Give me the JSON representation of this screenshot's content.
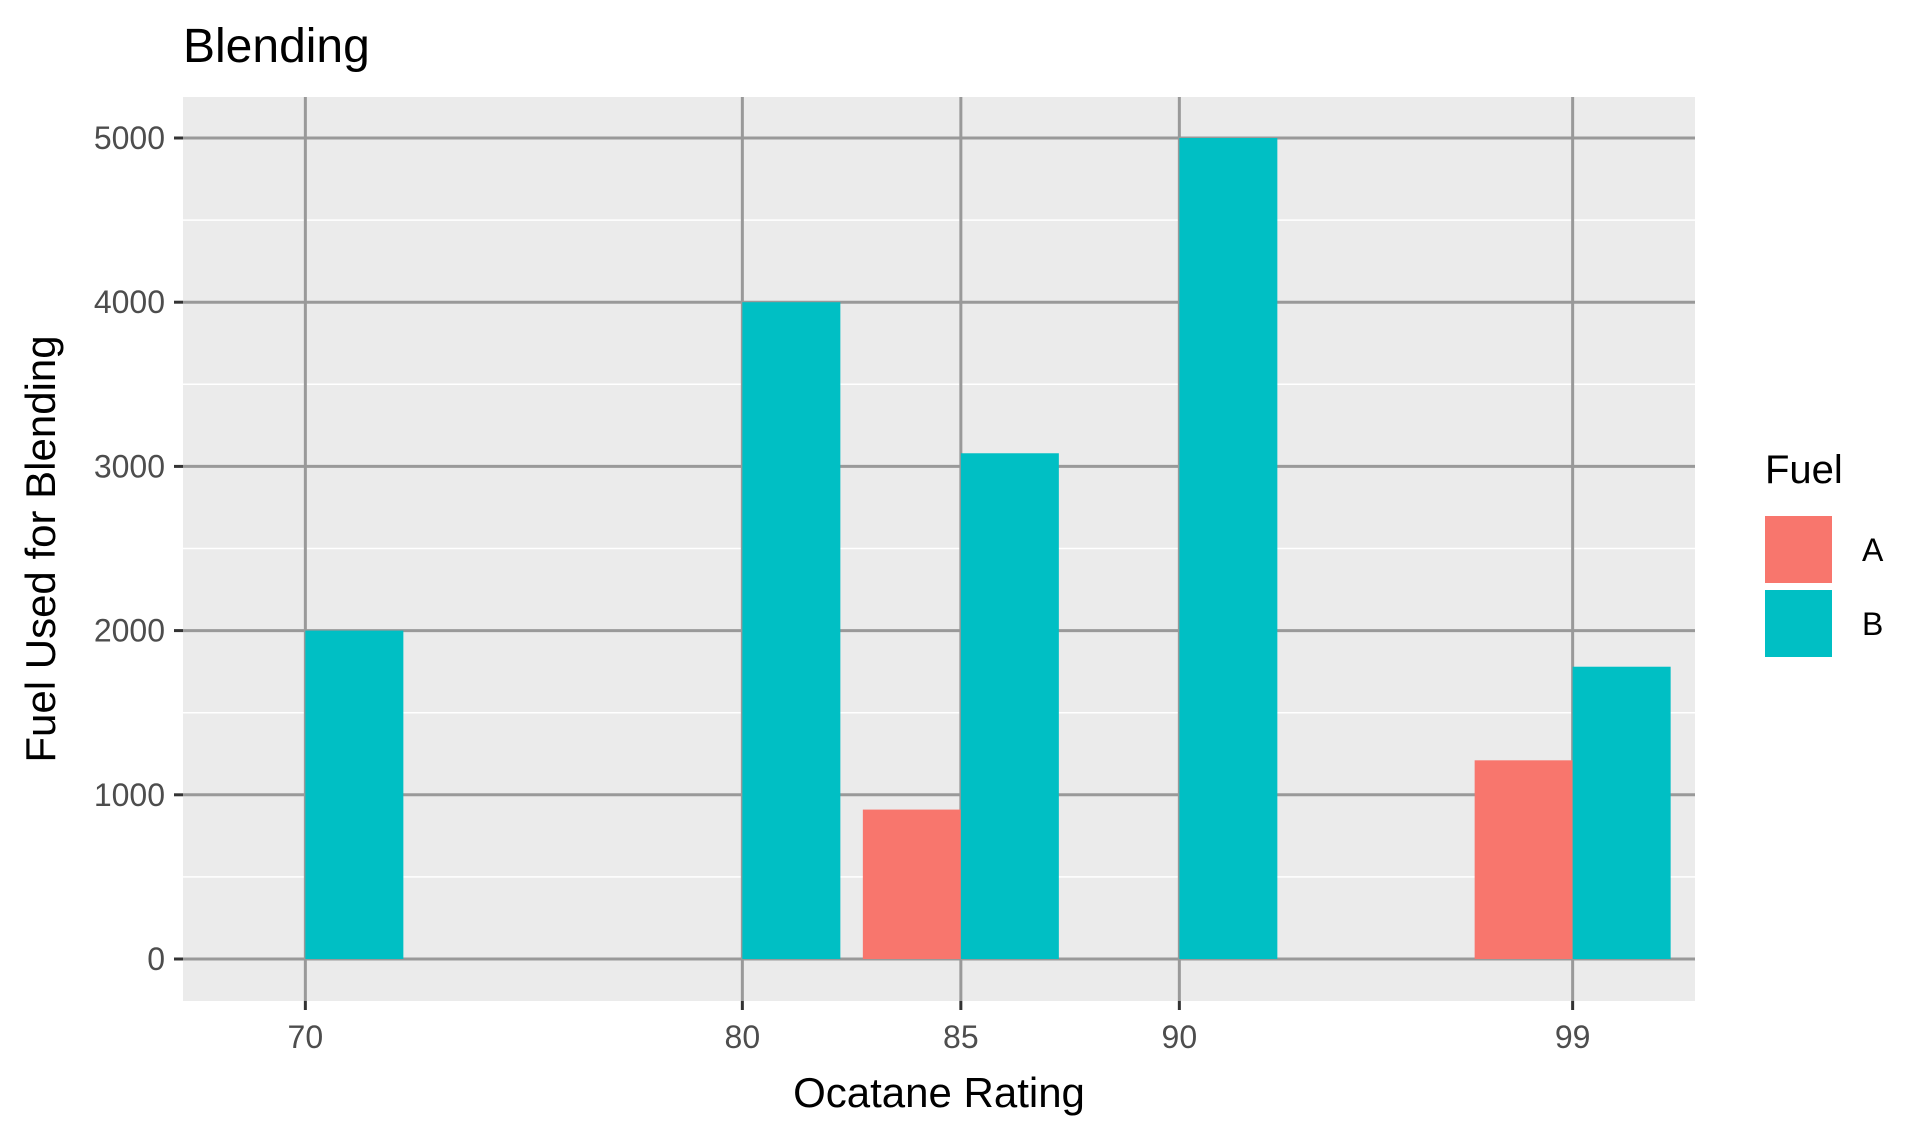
{
  "chart_data": {
    "type": "bar",
    "title": "Blending",
    "xlabel": "Ocatane Rating",
    "ylabel": "Fuel Used for Blending",
    "x_ticks": [
      "70",
      "80",
      "85",
      "90",
      "99"
    ],
    "y_ticks": [
      "0",
      "1000",
      "2000",
      "3000",
      "4000",
      "5000"
    ],
    "ylim": [
      0,
      5250
    ],
    "xlim": [
      67.2,
      101.8
    ],
    "grid": true,
    "legend_position": "right",
    "legend_title": "Fuel",
    "series": [
      {
        "name": "A",
        "color": "#F8766D",
        "points": [
          {
            "x": 85,
            "y": 910
          },
          {
            "x": 99,
            "y": 1210
          }
        ]
      },
      {
        "name": "B",
        "color": "#00BFC4",
        "points": [
          {
            "x": 70,
            "y": 2000
          },
          {
            "x": 80,
            "y": 4000
          },
          {
            "x": 85,
            "y": 3080
          },
          {
            "x": 90,
            "y": 5000
          },
          {
            "x": 99,
            "y": 1780
          }
        ]
      }
    ]
  }
}
